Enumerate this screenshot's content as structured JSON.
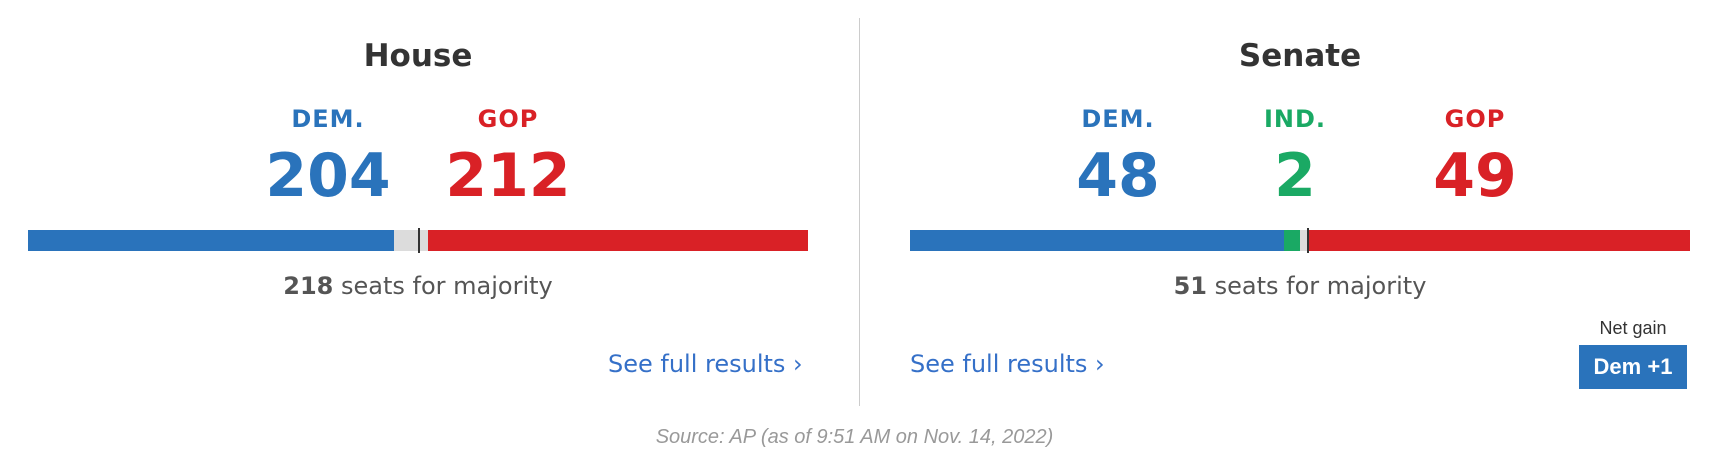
{
  "colors": {
    "dem": "#2a73bb",
    "gop": "#d92126",
    "ind": "#1aa964",
    "uncalled": "#dcdcdc",
    "link": "#3570c8",
    "badge": "#2a73bb"
  },
  "house": {
    "title": "House",
    "total_seats": 435,
    "dem": {
      "label": "DEM.",
      "count": "204",
      "seats": 204
    },
    "gop": {
      "label": "GOP",
      "count": "212",
      "seats": 212
    },
    "majority_number": "218",
    "majority_text": "seats for majority",
    "majority_seats": 218,
    "see_full_results": "See full results ›"
  },
  "senate": {
    "title": "Senate",
    "total_seats": 100,
    "dem": {
      "label": "DEM.",
      "count": "48",
      "seats": 48
    },
    "ind": {
      "label": "IND.",
      "count": "2",
      "seats": 2
    },
    "gop": {
      "label": "GOP",
      "count": "49",
      "seats": 49
    },
    "majority_number": "51",
    "majority_text": "seats for majority",
    "majority_seats": 51,
    "see_full_results": "See full results ›",
    "net_gain_label": "Net gain",
    "net_gain_value": "Dem +1"
  },
  "source": "Source: AP (as of 9:51 AM on Nov. 14, 2022)"
}
